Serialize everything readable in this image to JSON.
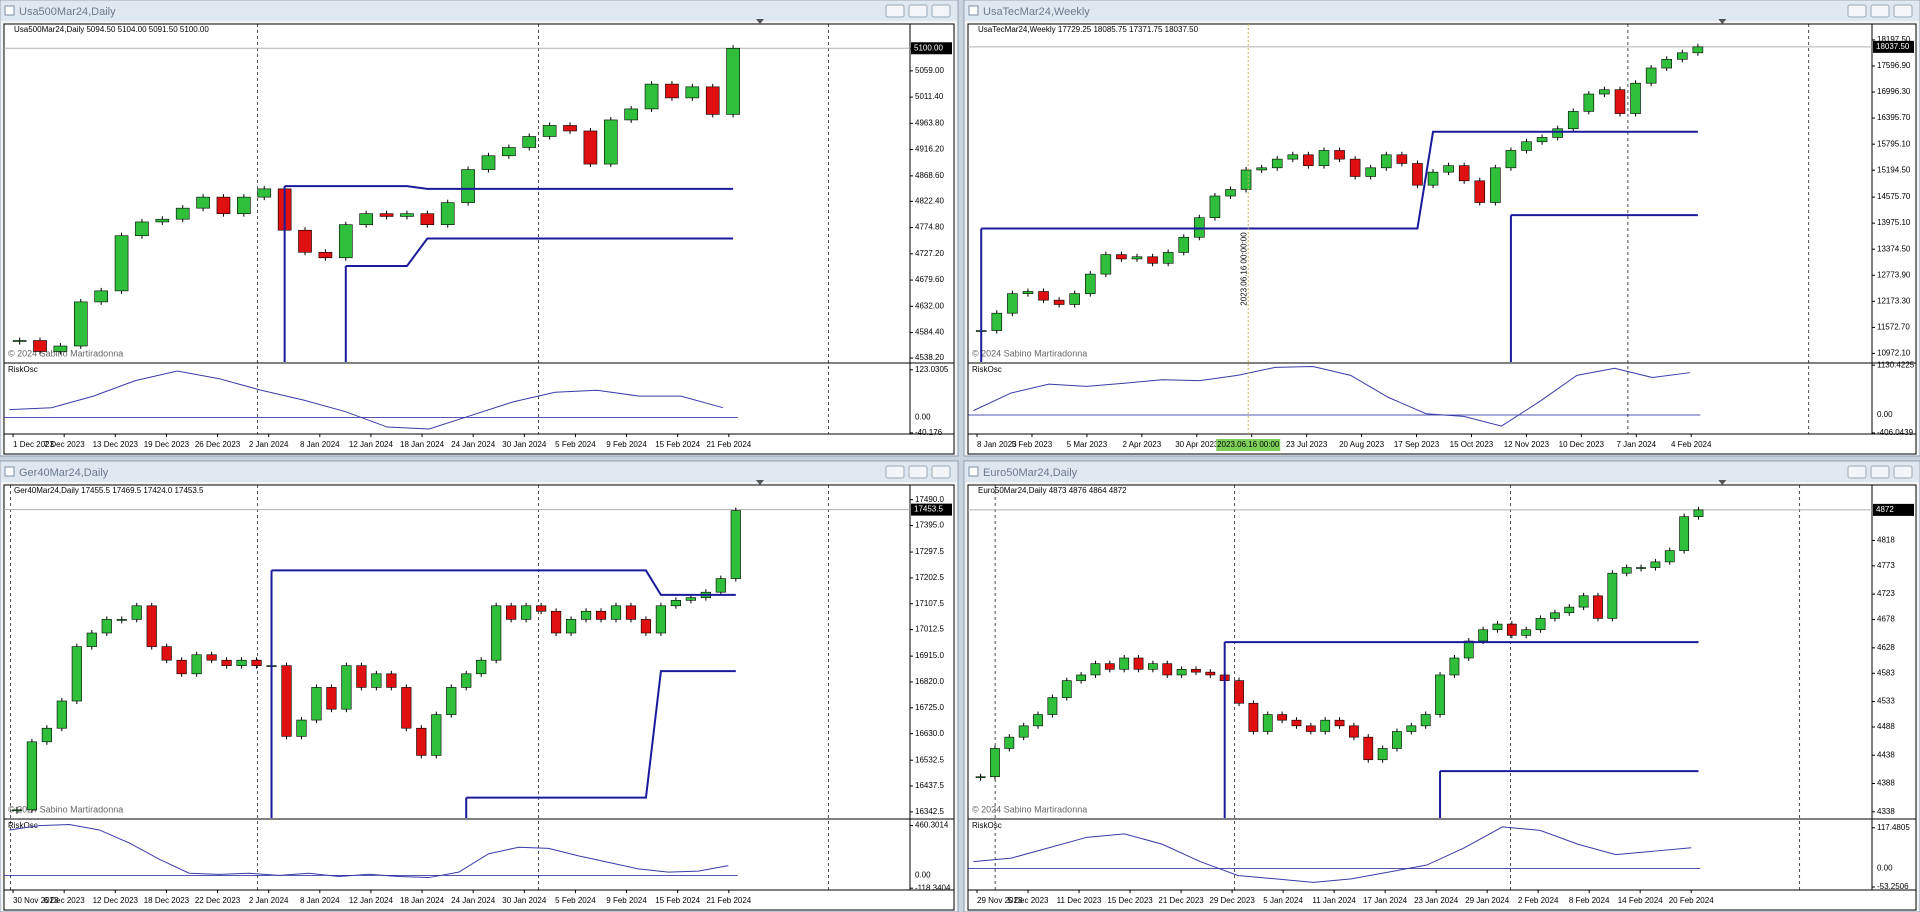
{
  "windows": [
    {
      "title": "Usa500Mar24,Daily",
      "header": "Usa500Mar24,Daily  5094.50 5104.00 5091.50 5100.00",
      "copyright": "© 2024 Sabino Martiradonna",
      "chart": {
        "type": "candlestick",
        "ylim": [
          4531,
          5144
        ],
        "yticks": [
          {
            "value": 5100,
            "label": "5100.00"
          },
          {
            "value": 5059,
            "label": "5059.00"
          },
          {
            "value": 5011.4,
            "label": "5011.40"
          },
          {
            "value": 4963.8,
            "label": "4963.80"
          },
          {
            "value": 4916.2,
            "label": "4916.20"
          },
          {
            "value": 4868.6,
            "label": "4868.60"
          },
          {
            "value": 4822.4,
            "label": "4822.40"
          },
          {
            "value": 4774.8,
            "label": "4774.80"
          },
          {
            "value": 4727.2,
            "label": "4727.20"
          },
          {
            "value": 4679.6,
            "label": "4679.60"
          },
          {
            "value": 4632,
            "label": "4632.00"
          },
          {
            "value": 4584.4,
            "label": "4584.40"
          },
          {
            "value": 4538.2,
            "label": "4538.20"
          }
        ],
        "last": {
          "value": 5100,
          "label": "5100.00"
        },
        "closes": [
          4570,
          4550,
          4560,
          4640,
          4660,
          4760,
          4785,
          4790,
          4810,
          4830,
          4800,
          4830,
          4845,
          4770,
          4730,
          4720,
          4780,
          4800,
          4795,
          4800,
          4780,
          4820,
          4880,
          4905,
          4920,
          4940,
          4960,
          4950,
          4890,
          4970,
          4990,
          5035,
          5010,
          5030,
          4980,
          5100
        ],
        "upper": [
          null,
          null,
          null,
          null,
          null,
          null,
          null,
          null,
          null,
          null,
          null,
          null,
          null,
          4850,
          4850,
          4850,
          4850,
          4850,
          4850,
          4850,
          4845,
          4845,
          4845,
          4845,
          4845,
          4845,
          4845,
          4845,
          4845,
          4845,
          4845,
          4845,
          4845,
          4845,
          4845,
          4845
        ],
        "lower": [
          null,
          null,
          null,
          null,
          null,
          null,
          null,
          null,
          null,
          null,
          null,
          null,
          null,
          null,
          null,
          null,
          4705,
          4705,
          4705,
          4705,
          4755,
          4755,
          4755,
          4755,
          4755,
          4755,
          4755,
          4755,
          4755,
          4755,
          4755,
          4755,
          4755,
          4755,
          4755,
          4755
        ],
        "osc": {
          "name": "RiskOsc",
          "ylim": [
            -43,
            138
          ],
          "ticks": [
            123.0305,
            {
              "value": 0,
              "label": "0.00"
            },
            -40.176
          ],
          "values": [
            20,
            25,
            55,
            95,
            120,
            100,
            70,
            45,
            15,
            -25,
            -30,
            5,
            40,
            65,
            70,
            55,
            55,
            25
          ]
        },
        "dates": [
          "1 Dec 2023",
          "7 Dec 2023",
          "13 Dec 2023",
          "19 Dec 2023",
          "26 Dec 2023",
          "2 Jan 2024",
          "8 Jan 2024",
          "12 Jan 2024",
          "18 Jan 2024",
          "24 Jan 2024",
          "30 Jan 2024",
          "5 Feb 2024",
          "9 Feb 2024",
          "15 Feb 2024",
          "21 Feb 2024"
        ]
      }
    },
    {
      "title": "UsaTecMar24,Weekly",
      "header": "UsaTecMar24,Weekly  17729.25 18085.75 17371.75 18037.50",
      "copyright": "© 2024 Sabino Martiradonna",
      "crosshair": {
        "time_label": "2023.06.16 00:00:00",
        "date_label": "2023.06.16 00:00"
      },
      "chart": {
        "type": "candlestick",
        "ylim": [
          10775,
          18564
        ],
        "yticks": [
          {
            "value": 18197.5,
            "label": "18197.50"
          },
          {
            "value": 17596.9,
            "label": "17596.90"
          },
          {
            "value": 16996.3,
            "label": "16996.30"
          },
          {
            "value": 16395.7,
            "label": "16395.70"
          },
          {
            "value": 15795.1,
            "label": "15795.10"
          },
          {
            "value": 15194.5,
            "label": "15194.50"
          },
          {
            "value": 14575.7,
            "label": "14575.70"
          },
          {
            "value": 13975.1,
            "label": "13975.10"
          },
          {
            "value": 13374.5,
            "label": "13374.50"
          },
          {
            "value": 12773.9,
            "label": "12773.90"
          },
          {
            "value": 12173.3,
            "label": "12173.30"
          },
          {
            "value": 11572.7,
            "label": "11572.70"
          },
          {
            "value": 10972.1,
            "label": "10972.10"
          }
        ],
        "last": {
          "value": 18037.5,
          "label": "18037.50"
        },
        "closes": [
          11500,
          11900,
          12350,
          12400,
          12200,
          12100,
          12350,
          12800,
          13250,
          13150,
          13200,
          13050,
          13300,
          13650,
          14100,
          14600,
          14750,
          15200,
          15250,
          15450,
          15550,
          15300,
          15650,
          15450,
          15050,
          15250,
          15550,
          15350,
          14850,
          15150,
          15300,
          14950,
          14450,
          15250,
          15650,
          15850,
          15950,
          16150,
          16550,
          16950,
          17050,
          16500,
          17200,
          17550,
          17750,
          17900,
          18037.5
        ],
        "upper": [
          13850,
          13850,
          13850,
          13850,
          13850,
          13850,
          13850,
          13850,
          13850,
          13850,
          13850,
          13850,
          13850,
          13850,
          13850,
          13850,
          13850,
          13850,
          13850,
          13850,
          13850,
          13850,
          13850,
          13850,
          13850,
          13850,
          13850,
          13850,
          13850,
          16080,
          16080,
          16080,
          16080,
          16080,
          16080,
          16080,
          16080,
          16080,
          16080,
          16080,
          16080,
          16080,
          16080,
          16080,
          16080,
          16080,
          16080
        ],
        "lower": [
          null,
          null,
          null,
          null,
          null,
          null,
          null,
          null,
          null,
          null,
          null,
          null,
          null,
          null,
          null,
          null,
          null,
          null,
          null,
          null,
          null,
          null,
          null,
          null,
          null,
          null,
          null,
          null,
          null,
          null,
          null,
          null,
          null,
          null,
          14160,
          14160,
          14160,
          14160,
          14160,
          14160,
          14160,
          14160,
          14160,
          14160,
          14160,
          14160,
          14160
        ],
        "osc": {
          "name": "RiskOsc",
          "ylim": [
            -430,
            1157
          ],
          "ticks": [
            1130.4225,
            {
              "value": 0,
              "label": "0.00"
            },
            -406.0439
          ],
          "values": [
            100,
            500,
            700,
            650,
            720,
            800,
            780,
            900,
            1080,
            1100,
            900,
            400,
            30,
            -30,
            -250,
            300,
            900,
            1060,
            850,
            960
          ]
        },
        "dates": [
          "8 Jan 2023",
          "5 Feb 2023",
          "5 Mar 2023",
          "2 Apr 2023",
          "30 Apr 2023",
          "Jun 2023",
          "23 Jul 2023",
          "20 Aug 2023",
          "17 Sep 2023",
          "15 Oct 2023",
          "12 Nov 2023",
          "10 Dec 2023",
          "7 Jan 2024",
          "4 Feb 2024"
        ]
      }
    },
    {
      "title": "Ger40Mar24,Daily",
      "header": "Ger40Mar24,Daily  17455.5 17469.5 17424.0 17453.5",
      "copyright": "© 2024 Sabino Martiradonna",
      "chart": {
        "type": "candlestick",
        "ylim": [
          16320,
          17544
        ],
        "yticks": [
          {
            "value": 17490,
            "label": "17490.0"
          },
          {
            "value": 17395,
            "label": "17395.0"
          },
          {
            "value": 17297.5,
            "label": "17297.5"
          },
          {
            "value": 17202.5,
            "label": "17202.5"
          },
          {
            "value": 17107.5,
            "label": "17107.5"
          },
          {
            "value": 17012.5,
            "label": "17012.5"
          },
          {
            "value": 16915,
            "label": "16915.0"
          },
          {
            "value": 16820,
            "label": "16820.0"
          },
          {
            "value": 16725,
            "label": "16725.0"
          },
          {
            "value": 16630,
            "label": "16630.0"
          },
          {
            "value": 16532.5,
            "label": "16532.5"
          },
          {
            "value": 16437.5,
            "label": "16437.5"
          },
          {
            "value": 16342.5,
            "label": "16342.5"
          }
        ],
        "last": 17453.5,
        "closes": [
          16350,
          16600,
          16650,
          16750,
          16950,
          17000,
          17050,
          17050,
          17100,
          16950,
          16900,
          16850,
          16920,
          16900,
          16880,
          16900,
          16880,
          16880,
          16620,
          16680,
          16800,
          16720,
          16880,
          16800,
          16850,
          16800,
          16650,
          16550,
          16700,
          16800,
          16850,
          16900,
          17100,
          17050,
          17100,
          17080,
          17000,
          17050,
          17080,
          17050,
          17100,
          17050,
          17000,
          17100,
          17120,
          17130,
          17150,
          17200,
          17450
        ],
        "upper": [
          null,
          null,
          null,
          null,
          null,
          null,
          null,
          null,
          null,
          null,
          null,
          null,
          null,
          null,
          null,
          null,
          null,
          17230,
          17230,
          17230,
          17230,
          17230,
          17230,
          17230,
          17230,
          17230,
          17230,
          17230,
          17230,
          17230,
          17230,
          17230,
          17230,
          17230,
          17230,
          17230,
          17230,
          17230,
          17230,
          17230,
          17230,
          17230,
          17230,
          17140,
          17140,
          17140,
          17140,
          17140,
          17140
        ],
        "lower": [
          null,
          null,
          null,
          null,
          null,
          null,
          null,
          null,
          null,
          null,
          null,
          null,
          null,
          null,
          null,
          null,
          null,
          null,
          null,
          null,
          null,
          null,
          null,
          null,
          null,
          null,
          null,
          null,
          null,
          null,
          16395,
          16395,
          16395,
          16395,
          16395,
          16395,
          16395,
          16395,
          16395,
          16395,
          16395,
          16395,
          16395,
          16860,
          16860,
          16860,
          16860,
          16860,
          16860
        ],
        "osc": {
          "name": "RiskOsc",
          "ylim": [
            -135,
            512
          ],
          "ticks": [
            460.3014,
            {
              "value": 0,
              "label": "0.00"
            },
            -118.3404
          ],
          "values": [
            420,
            460,
            470,
            420,
            300,
            150,
            20,
            10,
            20,
            0,
            20,
            -10,
            10,
            -10,
            -20,
            30,
            200,
            260,
            250,
            180,
            120,
            60,
            30,
            40,
            90
          ]
        },
        "dates": [
          "30 Nov 2023",
          "6 Dec 2023",
          "12 Dec 2023",
          "18 Dec 2023",
          "22 Dec 2023",
          "2 Jan 2024",
          "8 Jan 2024",
          "12 Jan 2024",
          "18 Jan 2024",
          "24 Jan 2024",
          "30 Jan 2024",
          "5 Feb 2024",
          "9 Feb 2024",
          "15 Feb 2024",
          "21 Feb 2024"
        ]
      }
    },
    {
      "title": "Euro50Mar24,Daily",
      "header": "Euro50Mar24,Daily  4873 4876 4864 4872",
      "copyright": "© 2024 Sabino Martiradonna",
      "chart": {
        "type": "candlestick",
        "ylim": [
          4327,
          4916
        ],
        "yticks": [
          4818,
          4773,
          4723,
          4678,
          4628,
          4583,
          4533,
          4488,
          4438,
          4388,
          4338
        ],
        "last": 4872,
        "closes": [
          4400,
          4450,
          4470,
          4490,
          4510,
          4540,
          4570,
          4580,
          4600,
          4590,
          4610,
          4590,
          4600,
          4580,
          4590,
          4585,
          4580,
          4570,
          4530,
          4480,
          4510,
          4500,
          4490,
          4480,
          4500,
          4490,
          4470,
          4430,
          4450,
          4480,
          4490,
          4510,
          4580,
          4610,
          4640,
          4660,
          4670,
          4650,
          4660,
          4680,
          4690,
          4700,
          4720,
          4680,
          4760,
          4770,
          4770,
          4780,
          4800,
          4860,
          4872
        ],
        "upper": [
          null,
          null,
          null,
          null,
          null,
          null,
          null,
          null,
          null,
          null,
          null,
          null,
          null,
          null,
          null,
          null,
          null,
          4638,
          4638,
          4638,
          4638,
          4638,
          4638,
          4638,
          4638,
          4638,
          4638,
          4638,
          4638,
          4638,
          4638,
          4638,
          4638,
          4638,
          4638,
          4638,
          4638,
          4638,
          4638,
          4638,
          4638,
          4638,
          4638,
          4638,
          4638,
          4638,
          4638,
          4638,
          4638,
          4638,
          4638
        ],
        "lower": [
          null,
          null,
          null,
          null,
          null,
          null,
          null,
          null,
          null,
          null,
          null,
          null,
          null,
          null,
          null,
          null,
          null,
          null,
          null,
          null,
          null,
          null,
          null,
          null,
          null,
          null,
          null,
          null,
          null,
          null,
          null,
          null,
          4410,
          4410,
          4410,
          4410,
          4410,
          4410,
          4410,
          4410,
          4410,
          4410,
          4410,
          4410,
          4410,
          4410,
          4410,
          4410,
          4410,
          4410,
          4410
        ],
        "osc": {
          "name": "RiskOsc",
          "ylim": [
            -62,
            140
          ],
          "ticks": [
            117.4805,
            {
              "value": 0,
              "label": "0.00"
            },
            -53.2506
          ],
          "values": [
            20,
            30,
            60,
            90,
            100,
            70,
            20,
            -20,
            -30,
            -40,
            -30,
            -10,
            10,
            60,
            120,
            110,
            70,
            40,
            50,
            60
          ]
        },
        "dates": [
          "29 Nov 2023",
          "5 Dec 2023",
          "11 Dec 2023",
          "15 Dec 2023",
          "21 Dec 2023",
          "29 Dec 2023",
          "5 Jan 2024",
          "11 Jan 2024",
          "17 Jan 2024",
          "23 Jan 2024",
          "29 Jan 2024",
          "2 Feb 2024",
          "8 Feb 2024",
          "14 Feb 2024",
          "20 Feb 2024"
        ]
      }
    }
  ]
}
